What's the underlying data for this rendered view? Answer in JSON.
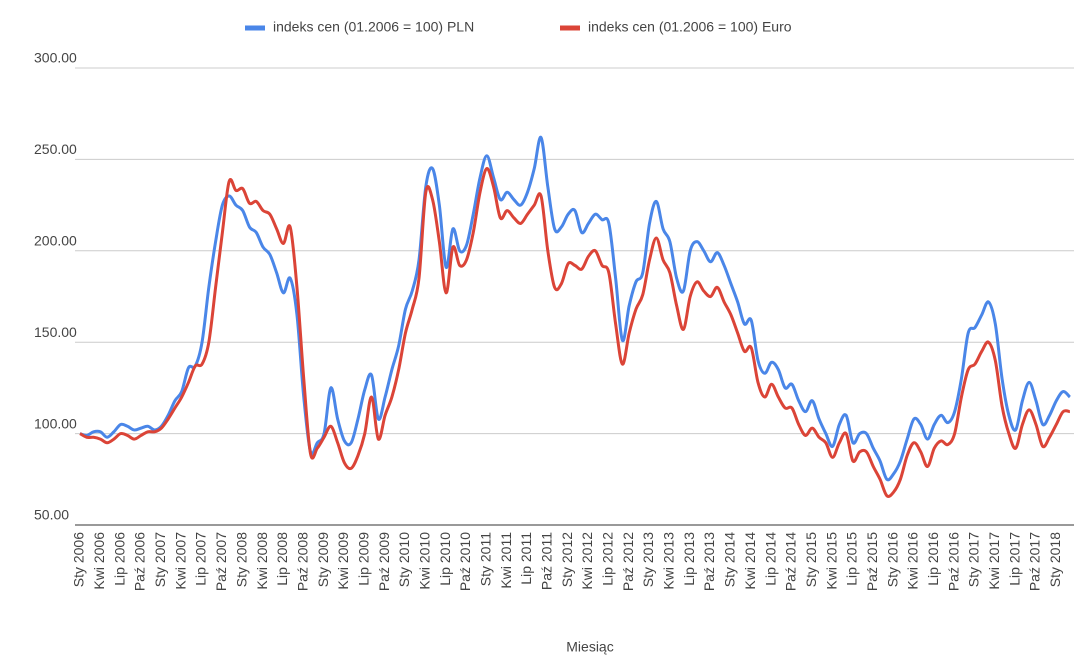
{
  "chart_data": {
    "type": "line",
    "x_label": "Miesiąc",
    "categories": [
      "Sty 2006",
      null,
      null,
      "Kwi 2006",
      null,
      null,
      "Lip 2006",
      null,
      null,
      "Paź 2006",
      null,
      null,
      "Sty 2007",
      null,
      null,
      "Kwi 2007",
      null,
      null,
      "Lip 2007",
      null,
      null,
      "Paź 2007",
      null,
      null,
      "Sty 2008",
      null,
      null,
      "Kwi 2008",
      null,
      null,
      "Lip 2008",
      null,
      null,
      "Paź 2008",
      null,
      null,
      "Sty 2009",
      null,
      null,
      "Kwi 2009",
      null,
      null,
      "Lip 2009",
      null,
      null,
      "Paź 2009",
      null,
      null,
      "Sty 2010",
      null,
      null,
      "Kwi 2010",
      null,
      null,
      "Lip 2010",
      null,
      null,
      "Paź 2010",
      null,
      null,
      "Sty 2011",
      null,
      null,
      "Kwi 2011",
      null,
      null,
      "Lip 2011",
      null,
      null,
      "Paź 2011",
      null,
      null,
      "Sty 2012",
      null,
      null,
      "Kwi 2012",
      null,
      null,
      "Lip 2012",
      null,
      null,
      "Paź 2012",
      null,
      null,
      "Sty 2013",
      null,
      null,
      "Kwi 2013",
      null,
      null,
      "Lip 2013",
      null,
      null,
      "Paź 2013",
      null,
      null,
      "Sty 2014",
      null,
      null,
      "Kwi 2014",
      null,
      null,
      "Lip 2014",
      null,
      null,
      "Paź 2014",
      null,
      null,
      "Sty 2015",
      null,
      null,
      "Kwi 2015",
      null,
      null,
      "Lip 2015",
      null,
      null,
      "Paź 2015",
      null,
      null,
      "Sty 2016",
      null,
      null,
      "Kwi 2016",
      null,
      null,
      "Lip 2016",
      null,
      null,
      "Paź 2016",
      null,
      null,
      "Sty 2017",
      null,
      null,
      "Kwi 2017",
      null,
      null,
      "Lip 2017",
      null,
      null,
      "Paź 2017",
      null,
      null,
      "Sty 2018",
      null,
      null
    ],
    "series": [
      {
        "name": "indeks cen (01.2006 = 100) PLN",
        "color": "#4a86e8",
        "values": [
          100,
          99,
          101,
          101,
          98,
          101,
          105,
          104,
          102,
          103,
          104,
          102,
          104,
          110,
          118,
          123,
          136,
          137,
          150,
          180,
          205,
          225,
          230,
          225,
          222,
          213,
          210,
          202,
          198,
          188,
          177,
          185,
          165,
          120,
          90,
          95,
          100,
          125,
          108,
          96,
          95,
          108,
          124,
          132,
          108,
          120,
          135,
          148,
          168,
          178,
          195,
          235,
          245,
          225,
          191,
          212,
          200,
          203,
          220,
          240,
          252,
          240,
          228,
          232,
          228,
          225,
          232,
          245,
          262,
          235,
          212,
          213,
          220,
          222,
          210,
          215,
          220,
          217,
          215,
          185,
          151,
          170,
          183,
          188,
          215,
          227,
          212,
          205,
          185,
          178,
          200,
          205,
          200,
          194,
          199,
          192,
          182,
          172,
          160,
          162,
          140,
          133,
          139,
          135,
          125,
          127,
          118,
          112,
          118,
          108,
          100,
          93,
          105,
          110,
          95,
          100,
          100,
          92,
          85,
          75,
          78,
          85,
          97,
          108,
          105,
          97,
          105,
          110,
          106,
          112,
          130,
          155,
          158,
          165,
          172,
          160,
          130,
          110,
          102,
          118,
          128,
          118,
          105,
          110,
          118,
          123,
          120
        ]
      },
      {
        "name": "indeks cen (01.2006 = 100) Euro",
        "color": "#db4437",
        "values": [
          100,
          98,
          98,
          97,
          95,
          97,
          100,
          99,
          97,
          99,
          101,
          101,
          103,
          108,
          114,
          120,
          128,
          137,
          138,
          150,
          180,
          210,
          238,
          233,
          234,
          226,
          227,
          222,
          220,
          212,
          204,
          213,
          180,
          130,
          89,
          92,
          98,
          104,
          95,
          84,
          81,
          88,
          100,
          120,
          97,
          110,
          120,
          135,
          155,
          168,
          185,
          232,
          228,
          205,
          177,
          202,
          192,
          195,
          210,
          232,
          245,
          235,
          218,
          222,
          218,
          215,
          220,
          225,
          230,
          200,
          180,
          182,
          193,
          192,
          190,
          197,
          200,
          192,
          188,
          160,
          138,
          155,
          168,
          176,
          195,
          207,
          195,
          188,
          170,
          157,
          175,
          183,
          178,
          175,
          180,
          172,
          165,
          155,
          145,
          147,
          128,
          120,
          127,
          120,
          114,
          114,
          105,
          99,
          103,
          98,
          95,
          87,
          95,
          100,
          85,
          90,
          90,
          82,
          75,
          66,
          68,
          75,
          88,
          95,
          90,
          82,
          92,
          96,
          94,
          100,
          120,
          135,
          138,
          145,
          150,
          140,
          115,
          100,
          92,
          105,
          113,
          105,
          93,
          98,
          105,
          112,
          112
        ]
      }
    ],
    "ylim": [
      50,
      300
    ],
    "yticks": [
      {
        "value": 50,
        "label": "50.00"
      },
      {
        "value": 100,
        "label": "100.00"
      },
      {
        "value": 150,
        "label": "150.00"
      },
      {
        "value": 200,
        "label": "200.00"
      },
      {
        "value": 250,
        "label": "250.00"
      },
      {
        "value": 300,
        "label": "300.00"
      }
    ],
    "grid": true,
    "legend": "top"
  }
}
